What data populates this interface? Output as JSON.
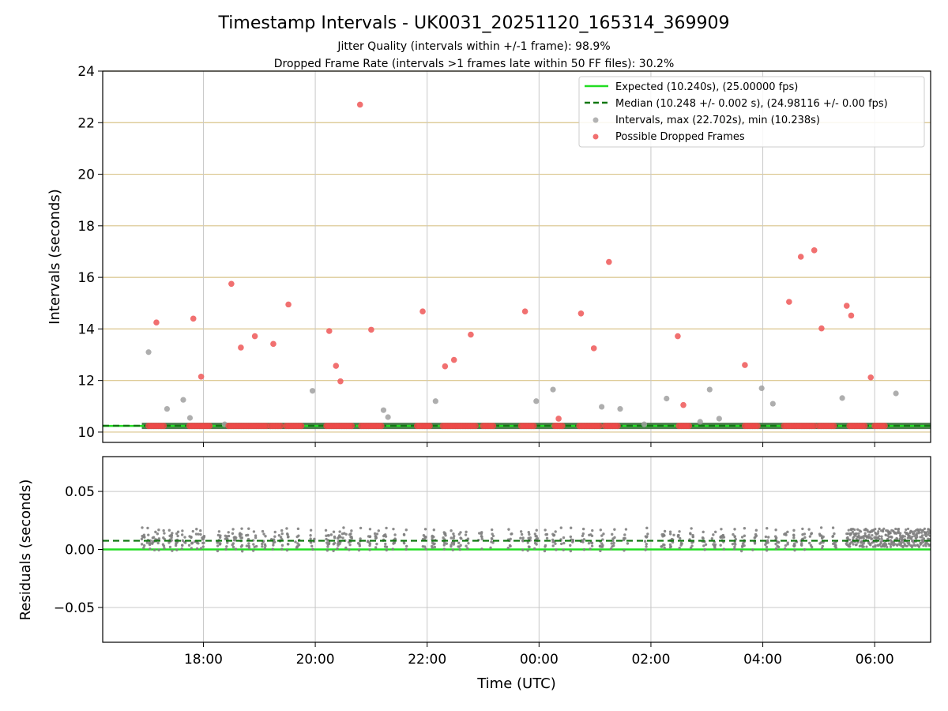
{
  "chart_data": [
    {
      "type": "scatter",
      "panel": "intervals",
      "title": "Timestamp Intervals - UK0031_20251120_165314_369909",
      "subtitle_1": "Jitter Quality (intervals within +/-1 frame): 98.9%",
      "subtitle_2": "Dropped Frame Rate (intervals >1 frames late within 50 FF files): 30.2%",
      "xlabel": "",
      "ylabel": "Intervals (seconds)",
      "xlim_hours": [
        -1.8,
        13.0
      ],
      "ylim": [
        9.6,
        24
      ],
      "yticks": [
        10,
        12,
        14,
        16,
        18,
        20,
        22,
        24
      ],
      "ytick_labels": [
        "10",
        "12",
        "14",
        "16",
        "18",
        "20",
        "22",
        "24"
      ],
      "xtick_hours": [
        0,
        2,
        4,
        6,
        8,
        10,
        12
      ],
      "xtick_labels": [
        "18:00",
        "20:00",
        "22:00",
        "00:00",
        "02:00",
        "04:00",
        "06:00"
      ],
      "grid": "x vertical, y horizontal",
      "expected": 10.24,
      "median": 10.248,
      "legend_position": "top-right",
      "legend": [
        {
          "label": "Expected (10.240s), (25.00000 fps)",
          "style": "solid-line",
          "color": "#22dd22"
        },
        {
          "label": "Median (10.248 +/- 0.002 s), (24.98116 +/- 0.00 fps)",
          "style": "dashed-line",
          "color": "#117711"
        },
        {
          "label": "Intervals, max (22.702s), min (10.238s)",
          "style": "marker",
          "color": "#a0a0a0"
        },
        {
          "label": "Possible Dropped Frames",
          "style": "marker",
          "color": "#f06060"
        }
      ],
      "series": [
        {
          "name": "Possible Dropped Frames",
          "color": "#f06060",
          "points": [
            [
              -0.84,
              14.25
            ],
            [
              -0.18,
              14.4
            ],
            [
              -0.04,
              12.15
            ],
            [
              0.5,
              15.75
            ],
            [
              0.67,
              13.28
            ],
            [
              0.92,
              13.72
            ],
            [
              1.25,
              13.42
            ],
            [
              1.52,
              14.95
            ],
            [
              2.25,
              13.92
            ],
            [
              2.37,
              12.57
            ],
            [
              2.45,
              11.97
            ],
            [
              2.8,
              22.7
            ],
            [
              3.0,
              13.97
            ],
            [
              3.92,
              14.68
            ],
            [
              4.32,
              12.55
            ],
            [
              4.48,
              12.8
            ],
            [
              4.78,
              13.78
            ],
            [
              5.75,
              14.68
            ],
            [
              6.35,
              10.52
            ],
            [
              6.75,
              14.6
            ],
            [
              6.98,
              13.25
            ],
            [
              7.25,
              16.6
            ],
            [
              8.48,
              13.72
            ],
            [
              8.58,
              11.05
            ],
            [
              9.68,
              12.6
            ],
            [
              10.47,
              15.05
            ],
            [
              10.68,
              16.8
            ],
            [
              10.92,
              17.05
            ],
            [
              11.05,
              14.02
            ],
            [
              11.5,
              14.9
            ],
            [
              11.58,
              14.52
            ],
            [
              11.93,
              12.12
            ]
          ],
          "dense_bands_at_expected_hours": [
            [
              -0.98,
              -0.7
            ],
            [
              -0.25,
              0.15
            ],
            [
              0.45,
              0.88
            ],
            [
              0.9,
              1.15
            ],
            [
              1.2,
              1.42
            ],
            [
              1.48,
              1.75
            ],
            [
              2.2,
              2.68
            ],
            [
              2.82,
              3.18
            ],
            [
              3.82,
              4.08
            ],
            [
              4.28,
              4.88
            ],
            [
              5.0,
              5.2
            ],
            [
              5.68,
              5.92
            ],
            [
              6.28,
              6.42
            ],
            [
              6.72,
              7.08
            ],
            [
              7.18,
              7.42
            ],
            [
              8.5,
              8.72
            ],
            [
              9.68,
              9.92
            ],
            [
              10.38,
              10.95
            ],
            [
              11.0,
              11.28
            ],
            [
              11.55,
              11.85
            ],
            [
              12.0,
              12.22
            ]
          ]
        },
        {
          "name": "Intervals",
          "color": "#a0a0a0",
          "points": [
            [
              -0.98,
              13.1
            ],
            [
              -0.65,
              10.9
            ],
            [
              -0.36,
              11.25
            ],
            [
              -0.24,
              10.55
            ],
            [
              0.38,
              10.3
            ],
            [
              1.95,
              11.6
            ],
            [
              3.22,
              10.85
            ],
            [
              3.3,
              10.58
            ],
            [
              4.15,
              11.2
            ],
            [
              5.95,
              11.2
            ],
            [
              6.25,
              11.65
            ],
            [
              7.12,
              10.98
            ],
            [
              7.45,
              10.9
            ],
            [
              7.88,
              10.3
            ],
            [
              8.28,
              11.3
            ],
            [
              8.88,
              10.4
            ],
            [
              9.05,
              11.65
            ],
            [
              9.22,
              10.52
            ],
            [
              9.98,
              11.7
            ],
            [
              10.18,
              11.1
            ],
            [
              11.42,
              11.32
            ],
            [
              12.38,
              11.5
            ]
          ],
          "baseline_hours": [
            -1.1,
            13.0
          ]
        }
      ]
    },
    {
      "type": "scatter",
      "panel": "residuals",
      "xlabel": "Time (UTC)",
      "ylabel": "Residuals (seconds)",
      "xlim_hours": [
        -1.8,
        13.0
      ],
      "ylim": [
        -0.08,
        0.08
      ],
      "yticks": [
        -0.05,
        0.0,
        0.05
      ],
      "ytick_labels": [
        "−0.05",
        "0.00",
        "0.05"
      ],
      "xtick_hours": [
        0,
        2,
        4,
        6,
        8,
        10,
        12
      ],
      "xtick_labels": [
        "18:00",
        "20:00",
        "22:00",
        "00:00",
        "02:00",
        "04:00",
        "06:00"
      ],
      "grid": "x vertical, y horizontal",
      "expected_residual": 0.0,
      "median_residual": 0.0075,
      "series": [
        {
          "name": "Residuals",
          "color": "#808080",
          "cluster_hours": [
            -1.08,
            -0.98,
            -0.88,
            -0.82,
            -0.72,
            -0.58,
            -0.48,
            -0.35,
            -0.22,
            -0.12,
            -0.02,
            0.28,
            0.42,
            0.55,
            0.68,
            0.8,
            0.92,
            1.08,
            1.25,
            1.38,
            1.52,
            1.68,
            1.95,
            2.22,
            2.32,
            2.42,
            2.52,
            2.62,
            2.8,
            2.95,
            3.1,
            3.25,
            3.42,
            3.62,
            3.95,
            4.12,
            4.32,
            4.45,
            4.58,
            4.72,
            4.95,
            5.15,
            5.48,
            5.7,
            5.82,
            5.95,
            6.12,
            6.28,
            6.42,
            6.58,
            6.78,
            6.92,
            7.12,
            7.32,
            7.55,
            7.92,
            8.22,
            8.38,
            8.52,
            8.72,
            8.95,
            9.12,
            9.28,
            9.48,
            9.65,
            9.85,
            10.08,
            10.25,
            10.42,
            10.58,
            10.72,
            10.85,
            11.05,
            11.28
          ],
          "cluster_center": 0.008,
          "cluster_spread": 0.012,
          "dense_block_hours": [
            11.5,
            13.0
          ],
          "dense_block_range": [
            0.002,
            0.018
          ]
        }
      ]
    }
  ]
}
